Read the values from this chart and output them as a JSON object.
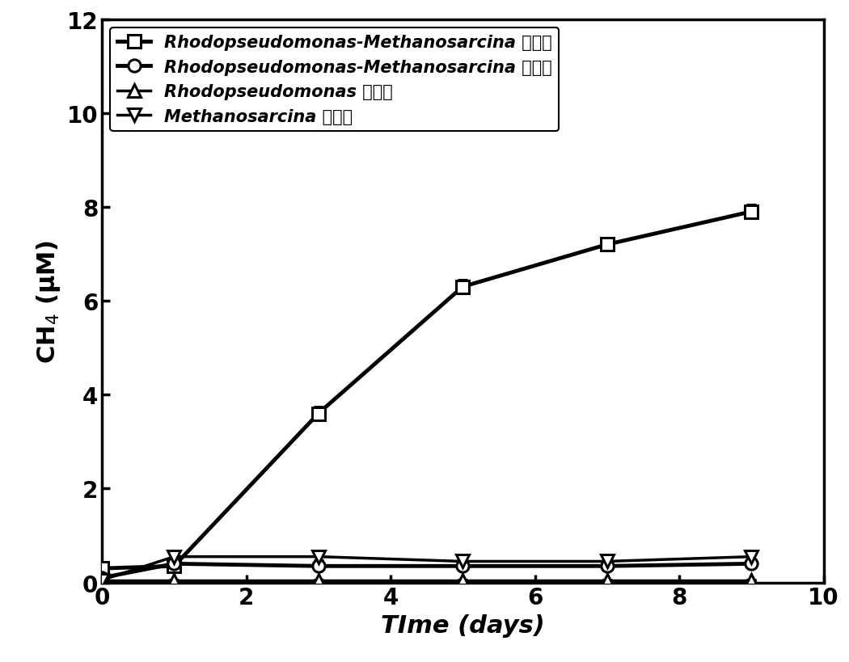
{
  "series": [
    {
      "label_italic": "Rhodopseudomonas-Methanosarcina",
      "label_cn": " 光照组",
      "x": [
        0,
        1,
        3,
        5,
        7,
        9
      ],
      "y": [
        0.3,
        0.35,
        3.6,
        6.3,
        7.2,
        7.9
      ],
      "yerr": [
        0.05,
        0.06,
        0.15,
        0.15,
        0.12,
        0.15
      ],
      "marker": "s",
      "linewidth": 3.5,
      "markersize": 11,
      "color": "#000000",
      "fillstyle": "none"
    },
    {
      "label_italic": "Rhodopseudomonas-Methanosarcina",
      "label_cn": " 黑暗组",
      "x": [
        0,
        1,
        3,
        5,
        7,
        9
      ],
      "y": [
        0.1,
        0.4,
        0.35,
        0.35,
        0.35,
        0.4
      ],
      "yerr": [
        0.03,
        0.05,
        0.04,
        0.04,
        0.04,
        0.05
      ],
      "marker": "o",
      "linewidth": 3.5,
      "markersize": 11,
      "color": "#000000",
      "fillstyle": "none"
    },
    {
      "label_italic": "Rhodopseudomonas",
      "label_cn": " 光照组",
      "x": [
        0,
        1,
        3,
        5,
        7,
        9
      ],
      "y": [
        0.05,
        0.05,
        0.05,
        0.05,
        0.05,
        0.05
      ],
      "yerr": [
        0.01,
        0.01,
        0.01,
        0.01,
        0.01,
        0.01
      ],
      "marker": "^",
      "linewidth": 2.5,
      "markersize": 11,
      "color": "#000000",
      "fillstyle": "none"
    },
    {
      "label_italic": "Methanosarcina",
      "label_cn": " 光照组",
      "x": [
        0,
        1,
        3,
        5,
        7,
        9
      ],
      "y": [
        0.05,
        0.55,
        0.55,
        0.45,
        0.45,
        0.55
      ],
      "yerr": [
        0.01,
        0.07,
        0.07,
        0.06,
        0.05,
        0.07
      ],
      "marker": "v",
      "linewidth": 2.5,
      "markersize": 11,
      "color": "#000000",
      "fillstyle": "none"
    }
  ],
  "xlabel": "TIme (days)",
  "ylabel": "CH$_4$ (μM)",
  "xlim": [
    0,
    10
  ],
  "ylim": [
    0,
    12
  ],
  "xticks": [
    0,
    2,
    4,
    6,
    8,
    10
  ],
  "yticks": [
    0,
    2,
    4,
    6,
    8,
    10,
    12
  ],
  "tick_fontsize": 20,
  "label_fontsize": 22,
  "legend_fontsize": 15,
  "background_color": "#ffffff",
  "spine_linewidth": 2.5
}
